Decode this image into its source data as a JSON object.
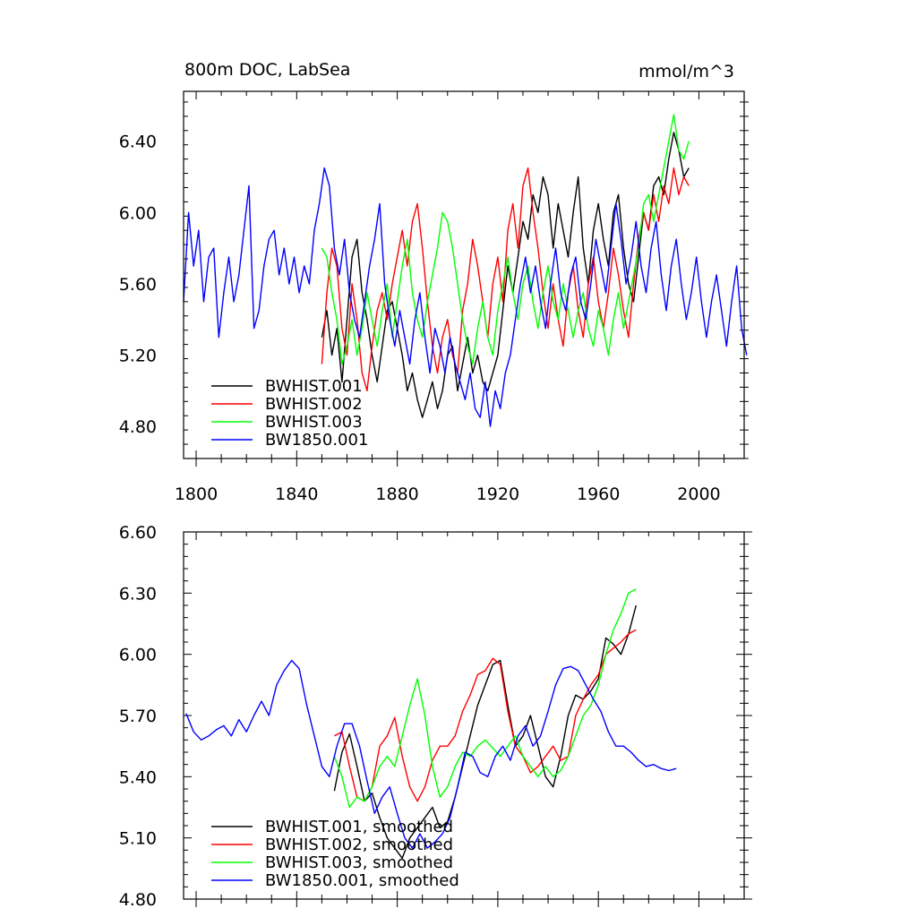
{
  "chart_data": [
    {
      "type": "line",
      "title": "800m DOC, LabSea",
      "units": "mmol/m^3",
      "xlabel": "",
      "ylabel": "",
      "xlim": [
        1795,
        2018
      ],
      "ylim": [
        4.62,
        6.68
      ],
      "xticks": [
        1800,
        1840,
        1880,
        1920,
        1960,
        2000
      ],
      "yticks": [
        4.8,
        5.2,
        5.6,
        6.0,
        6.4
      ],
      "ytick_labels": [
        "4.80",
        "5.20",
        "5.60",
        "6.00",
        "6.40"
      ],
      "xtick_labels": [
        "1800",
        "1840",
        "1880",
        "1920",
        "1960",
        "2000"
      ],
      "legend_position": "bottom-left",
      "series": [
        {
          "name": "BWHIST.001",
          "color": "#000000",
          "x_start": 1850,
          "x_step": 2,
          "values": [
            5.3,
            5.45,
            5.2,
            5.35,
            5.05,
            5.4,
            5.75,
            5.85,
            5.55,
            5.4,
            5.2,
            5.05,
            5.25,
            5.45,
            5.5,
            5.35,
            5.2,
            5.0,
            5.1,
            4.95,
            4.85,
            4.95,
            5.05,
            4.9,
            5.0,
            5.2,
            5.25,
            5.0,
            5.15,
            5.3,
            5.1,
            5.2,
            5.05,
            5.0,
            5.1,
            5.2,
            5.45,
            5.7,
            5.55,
            5.75,
            5.95,
            5.85,
            6.1,
            6.0,
            6.2,
            6.1,
            5.8,
            6.05,
            5.9,
            5.75,
            6.0,
            6.2,
            5.8,
            5.6,
            5.9,
            6.05,
            5.85,
            5.7,
            6.0,
            6.1,
            5.8,
            5.6,
            5.5,
            5.75,
            6.0,
            5.9,
            6.15,
            6.2,
            6.1,
            6.3,
            6.45,
            6.35,
            6.2,
            6.25
          ]
        },
        {
          "name": "BWHIST.002",
          "color": "#ff0000",
          "x_start": 1850,
          "x_step": 2,
          "values": [
            5.15,
            5.55,
            5.8,
            5.7,
            5.35,
            5.2,
            5.6,
            5.4,
            5.1,
            5.0,
            5.25,
            5.45,
            5.55,
            5.4,
            5.6,
            5.75,
            5.9,
            5.7,
            5.95,
            6.05,
            5.8,
            5.5,
            5.25,
            5.1,
            5.3,
            5.4,
            5.2,
            5.1,
            5.45,
            5.6,
            5.85,
            5.7,
            5.5,
            5.3,
            5.6,
            5.75,
            5.5,
            5.9,
            6.05,
            5.8,
            6.15,
            6.25,
            6.0,
            5.8,
            5.55,
            5.35,
            5.6,
            5.4,
            5.25,
            5.55,
            5.7,
            5.45,
            5.3,
            5.6,
            5.75,
            5.5,
            5.35,
            5.55,
            5.8,
            5.65,
            5.45,
            5.3,
            5.6,
            5.85,
            6.0,
            5.9,
            6.1,
            5.95,
            6.15,
            6.05,
            6.25,
            6.1,
            6.2,
            6.15
          ]
        },
        {
          "name": "BWHIST.003",
          "color": "#00ff00",
          "x_start": 1850,
          "x_step": 2,
          "values": [
            5.8,
            5.75,
            5.55,
            5.4,
            5.15,
            5.25,
            5.4,
            5.2,
            5.35,
            5.55,
            5.4,
            5.25,
            5.45,
            5.6,
            5.3,
            5.5,
            5.7,
            5.85,
            5.55,
            5.4,
            5.3,
            5.5,
            5.65,
            5.8,
            6.0,
            5.95,
            5.8,
            5.6,
            5.4,
            5.25,
            5.15,
            5.35,
            5.5,
            5.3,
            5.2,
            5.45,
            5.6,
            5.75,
            5.55,
            5.4,
            5.6,
            5.7,
            5.5,
            5.35,
            5.55,
            5.7,
            5.5,
            5.4,
            5.6,
            5.45,
            5.3,
            5.45,
            5.55,
            5.35,
            5.25,
            5.45,
            5.35,
            5.2,
            5.4,
            5.55,
            5.35,
            5.5,
            5.65,
            5.8,
            6.05,
            6.1,
            5.95,
            6.1,
            6.25,
            6.4,
            6.55,
            6.35,
            6.3,
            6.4
          ]
        },
        {
          "name": "BW1850.001",
          "color": "#0000ff",
          "x_start": 1795,
          "x_step": 2,
          "values": [
            5.5,
            6.0,
            5.7,
            5.9,
            5.5,
            5.75,
            5.8,
            5.3,
            5.55,
            5.75,
            5.5,
            5.65,
            5.9,
            6.15,
            5.35,
            5.45,
            5.7,
            5.85,
            5.9,
            5.65,
            5.8,
            5.6,
            5.75,
            5.55,
            5.7,
            5.6,
            5.9,
            6.05,
            6.25,
            6.15,
            5.8,
            5.65,
            5.85,
            5.55,
            5.4,
            5.3,
            5.5,
            5.7,
            5.85,
            6.05,
            5.6,
            5.4,
            5.25,
            5.45,
            5.3,
            5.15,
            5.4,
            5.55,
            5.3,
            5.1,
            5.35,
            5.25,
            5.1,
            5.3,
            5.15,
            5.05,
            4.95,
            5.1,
            4.9,
            4.85,
            5.05,
            4.8,
            5.0,
            4.9,
            5.1,
            5.2,
            5.4,
            5.6,
            5.75,
            5.55,
            5.7,
            5.5,
            5.35,
            5.6,
            5.8,
            5.55,
            5.45,
            5.65,
            5.75,
            5.5,
            5.4,
            5.6,
            5.85,
            5.7,
            5.55,
            5.8,
            6.05,
            5.85,
            5.6,
            5.75,
            5.95,
            5.7,
            5.55,
            5.8,
            5.95,
            5.65,
            5.45,
            5.7,
            5.85,
            5.6,
            5.4,
            5.55,
            5.75,
            5.5,
            5.3,
            5.5,
            5.65,
            5.45,
            5.25,
            5.5,
            5.7,
            5.35,
            5.2
          ]
        }
      ]
    },
    {
      "type": "line",
      "title": "",
      "xlabel": "",
      "ylabel": "",
      "xlim": [
        1795,
        2018
      ],
      "ylim": [
        4.8,
        6.6
      ],
      "xticks": [
        1800,
        1840,
        1880,
        1920,
        1960,
        2000
      ],
      "yticks": [
        4.8,
        5.1,
        5.4,
        5.7,
        6.0,
        6.3,
        6.6
      ],
      "ytick_labels": [
        "4.80",
        "5.10",
        "5.40",
        "5.70",
        "6.00",
        "6.30",
        "6.60"
      ],
      "legend_position": "bottom-left",
      "series": [
        {
          "name": "BWHIST.001, smoothed",
          "color": "#000000",
          "x_start": 1855,
          "x_step": 3,
          "values": [
            5.33,
            5.52,
            5.61,
            5.45,
            5.28,
            5.32,
            5.2,
            5.1,
            5.05,
            5.0,
            5.1,
            5.15,
            5.2,
            5.25,
            5.15,
            5.18,
            5.3,
            5.45,
            5.6,
            5.75,
            5.85,
            5.95,
            5.97,
            5.75,
            5.55,
            5.6,
            5.7,
            5.55,
            5.4,
            5.35,
            5.5,
            5.7,
            5.8,
            5.78,
            5.82,
            5.88,
            6.08,
            6.05,
            6.0,
            6.1,
            6.24
          ]
        },
        {
          "name": "BWHIST.002, smoothed",
          "color": "#ff0000",
          "x_start": 1855,
          "x_step": 3,
          "values": [
            5.6,
            5.62,
            5.45,
            5.3,
            5.28,
            5.35,
            5.55,
            5.6,
            5.69,
            5.5,
            5.35,
            5.28,
            5.35,
            5.48,
            5.55,
            5.55,
            5.6,
            5.72,
            5.8,
            5.9,
            5.92,
            5.98,
            5.95,
            5.72,
            5.55,
            5.5,
            5.42,
            5.45,
            5.5,
            5.55,
            5.48,
            5.5,
            5.7,
            5.78,
            5.85,
            5.9,
            6.0,
            6.03,
            6.06,
            6.1,
            6.12
          ]
        },
        {
          "name": "BWHIST.003, smoothed",
          "color": "#00ff00",
          "x_start": 1855,
          "x_step": 3,
          "values": [
            5.5,
            5.4,
            5.25,
            5.3,
            5.28,
            5.35,
            5.45,
            5.5,
            5.45,
            5.6,
            5.75,
            5.88,
            5.7,
            5.45,
            5.3,
            5.35,
            5.45,
            5.52,
            5.5,
            5.55,
            5.58,
            5.54,
            5.5,
            5.55,
            5.6,
            5.5,
            5.45,
            5.4,
            5.45,
            5.4,
            5.43,
            5.5,
            5.6,
            5.7,
            5.75,
            5.85,
            6.0,
            6.12,
            6.2,
            6.3,
            6.32
          ]
        },
        {
          "name": "BW1850.001, smoothed",
          "color": "#0000ff",
          "x_start": 1796,
          "x_step": 3,
          "values": [
            5.71,
            5.62,
            5.58,
            5.6,
            5.63,
            5.65,
            5.6,
            5.68,
            5.62,
            5.7,
            5.77,
            5.7,
            5.85,
            5.92,
            5.97,
            5.93,
            5.75,
            5.6,
            5.45,
            5.4,
            5.55,
            5.66,
            5.66,
            5.55,
            5.38,
            5.22,
            5.3,
            5.35,
            5.22,
            5.1,
            5.05,
            5.12,
            5.05,
            5.08,
            5.12,
            5.2,
            5.35,
            5.52,
            5.5,
            5.42,
            5.4,
            5.5,
            5.55,
            5.48,
            5.6,
            5.65,
            5.55,
            5.6,
            5.72,
            5.85,
            5.93,
            5.94,
            5.92,
            5.85,
            5.78,
            5.72,
            5.62,
            5.55,
            5.55,
            5.52,
            5.48,
            5.45,
            5.46,
            5.44,
            5.43,
            5.44
          ]
        }
      ]
    }
  ]
}
